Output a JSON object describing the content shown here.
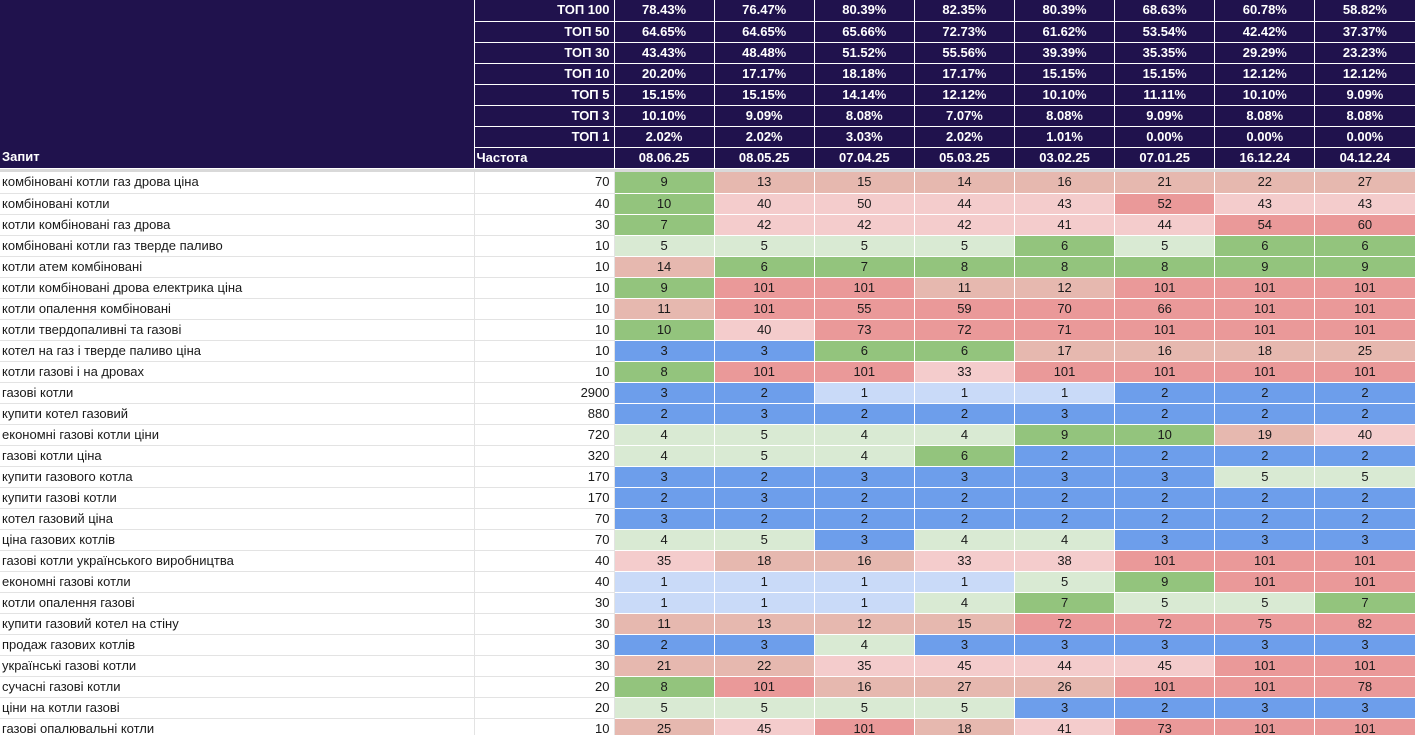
{
  "summary_rows": [
    {
      "label": "ТОП 100",
      "values": [
        "78.43%",
        "76.47%",
        "80.39%",
        "82.35%",
        "80.39%",
        "68.63%",
        "60.78%",
        "58.82%"
      ]
    },
    {
      "label": "ТОП 50",
      "values": [
        "64.65%",
        "64.65%",
        "65.66%",
        "72.73%",
        "61.62%",
        "53.54%",
        "42.42%",
        "37.37%"
      ]
    },
    {
      "label": "ТОП 30",
      "values": [
        "43.43%",
        "48.48%",
        "51.52%",
        "55.56%",
        "39.39%",
        "35.35%",
        "29.29%",
        "23.23%"
      ]
    },
    {
      "label": "ТОП 10",
      "values": [
        "20.20%",
        "17.17%",
        "18.18%",
        "17.17%",
        "15.15%",
        "15.15%",
        "12.12%",
        "12.12%"
      ]
    },
    {
      "label": "ТОП 5",
      "values": [
        "15.15%",
        "15.15%",
        "14.14%",
        "12.12%",
        "10.10%",
        "11.11%",
        "10.10%",
        "9.09%"
      ]
    },
    {
      "label": "ТОП 3",
      "values": [
        "10.10%",
        "9.09%",
        "8.08%",
        "7.07%",
        "8.08%",
        "9.09%",
        "8.08%",
        "8.08%"
      ]
    },
    {
      "label": "ТОП 1",
      "values": [
        "2.02%",
        "2.02%",
        "3.03%",
        "2.02%",
        "1.01%",
        "0.00%",
        "0.00%",
        "0.00%"
      ]
    }
  ],
  "header": {
    "query": "Запит",
    "frequency": "Частота",
    "dates": [
      "08.06.25",
      "08.05.25",
      "07.04.25",
      "05.03.25",
      "03.02.25",
      "07.01.25",
      "16.12.24",
      "04.12.24"
    ]
  },
  "color_legend": {
    "blue": "#6d9eeb",
    "lblue": "#c9daf8",
    "green": "#93c47d",
    "lgreen": "#d9ead3",
    "pink": "#f4cccc",
    "salmon": "#e6b8af",
    "red": "#ea9999",
    "header_bg": "#20124d"
  },
  "rows": [
    {
      "query": "комбіновані котли газ дрова ціна",
      "freq": "70",
      "positions": [
        "9",
        "13",
        "15",
        "14",
        "16",
        "21",
        "22",
        "27"
      ],
      "colors": [
        "green",
        "salmon",
        "salmon",
        "salmon",
        "salmon",
        "salmon",
        "salmon",
        "salmon"
      ]
    },
    {
      "query": "комбіновані котли",
      "freq": "40",
      "positions": [
        "10",
        "40",
        "50",
        "44",
        "43",
        "52",
        "43",
        "43"
      ],
      "colors": [
        "green",
        "pink",
        "pink",
        "pink",
        "pink",
        "red",
        "pink",
        "pink"
      ]
    },
    {
      "query": "котли комбіновані газ дрова",
      "freq": "30",
      "positions": [
        "7",
        "42",
        "42",
        "42",
        "41",
        "44",
        "54",
        "60"
      ],
      "colors": [
        "green",
        "pink",
        "pink",
        "pink",
        "pink",
        "pink",
        "red",
        "red"
      ]
    },
    {
      "query": "комбіновані котли газ тверде паливо",
      "freq": "10",
      "positions": [
        "5",
        "5",
        "5",
        "5",
        "6",
        "5",
        "6",
        "6"
      ],
      "colors": [
        "lgreen",
        "lgreen",
        "lgreen",
        "lgreen",
        "green",
        "lgreen",
        "green",
        "green"
      ]
    },
    {
      "query": "котли атем комбіновані",
      "freq": "10",
      "positions": [
        "14",
        "6",
        "7",
        "8",
        "8",
        "8",
        "9",
        "9"
      ],
      "colors": [
        "salmon",
        "green",
        "green",
        "green",
        "green",
        "green",
        "green",
        "green"
      ]
    },
    {
      "query": "котли комбіновані дрова електрика ціна",
      "freq": "10",
      "positions": [
        "9",
        "101",
        "101",
        "11",
        "12",
        "101",
        "101",
        "101"
      ],
      "colors": [
        "green",
        "red",
        "red",
        "salmon",
        "salmon",
        "red",
        "red",
        "red"
      ]
    },
    {
      "query": "котли опалення комбіновані",
      "freq": "10",
      "positions": [
        "11",
        "101",
        "55",
        "59",
        "70",
        "66",
        "101",
        "101"
      ],
      "colors": [
        "salmon",
        "red",
        "red",
        "red",
        "red",
        "red",
        "red",
        "red"
      ]
    },
    {
      "query": "котли твердопаливні та газові",
      "freq": "10",
      "positions": [
        "10",
        "40",
        "73",
        "72",
        "71",
        "101",
        "101",
        "101"
      ],
      "colors": [
        "green",
        "pink",
        "red",
        "red",
        "red",
        "red",
        "red",
        "red"
      ]
    },
    {
      "query": "котел на газ і тверде паливо ціна",
      "freq": "10",
      "positions": [
        "3",
        "3",
        "6",
        "6",
        "17",
        "16",
        "18",
        "25"
      ],
      "colors": [
        "blue",
        "blue",
        "green",
        "green",
        "salmon",
        "salmon",
        "salmon",
        "salmon"
      ]
    },
    {
      "query": "котли газові і на дровах",
      "freq": "10",
      "positions": [
        "8",
        "101",
        "101",
        "33",
        "101",
        "101",
        "101",
        "101"
      ],
      "colors": [
        "green",
        "red",
        "red",
        "pink",
        "red",
        "red",
        "red",
        "red"
      ]
    },
    {
      "query": "газові котли",
      "freq": "2900",
      "positions": [
        "3",
        "2",
        "1",
        "1",
        "1",
        "2",
        "2",
        "2"
      ],
      "colors": [
        "blue",
        "blue",
        "lblue",
        "lblue",
        "lblue",
        "blue",
        "blue",
        "blue"
      ]
    },
    {
      "query": "купити котел газовий",
      "freq": "880",
      "positions": [
        "2",
        "3",
        "2",
        "2",
        "3",
        "2",
        "2",
        "2"
      ],
      "colors": [
        "blue",
        "blue",
        "blue",
        "blue",
        "blue",
        "blue",
        "blue",
        "blue"
      ]
    },
    {
      "query": "економні газові котли ціни",
      "freq": "720",
      "positions": [
        "4",
        "5",
        "4",
        "4",
        "9",
        "10",
        "19",
        "40"
      ],
      "colors": [
        "lgreen",
        "lgreen",
        "lgreen",
        "lgreen",
        "green",
        "green",
        "salmon",
        "pink"
      ]
    },
    {
      "query": "газові котли ціна",
      "freq": "320",
      "positions": [
        "4",
        "5",
        "4",
        "6",
        "2",
        "2",
        "2",
        "2"
      ],
      "colors": [
        "lgreen",
        "lgreen",
        "lgreen",
        "green",
        "blue",
        "blue",
        "blue",
        "blue"
      ]
    },
    {
      "query": "купити газового котла",
      "freq": "170",
      "positions": [
        "3",
        "2",
        "3",
        "3",
        "3",
        "3",
        "5",
        "5"
      ],
      "colors": [
        "blue",
        "blue",
        "blue",
        "blue",
        "blue",
        "blue",
        "lgreen",
        "lgreen"
      ]
    },
    {
      "query": "купити газові котли",
      "freq": "170",
      "positions": [
        "2",
        "3",
        "2",
        "2",
        "2",
        "2",
        "2",
        "2"
      ],
      "colors": [
        "blue",
        "blue",
        "blue",
        "blue",
        "blue",
        "blue",
        "blue",
        "blue"
      ]
    },
    {
      "query": "котел газовий ціна",
      "freq": "70",
      "positions": [
        "3",
        "2",
        "2",
        "2",
        "2",
        "2",
        "2",
        "2"
      ],
      "colors": [
        "blue",
        "blue",
        "blue",
        "blue",
        "blue",
        "blue",
        "blue",
        "blue"
      ]
    },
    {
      "query": "ціна газових котлів",
      "freq": "70",
      "positions": [
        "4",
        "5",
        "3",
        "4",
        "4",
        "3",
        "3",
        "3"
      ],
      "colors": [
        "lgreen",
        "lgreen",
        "blue",
        "lgreen",
        "lgreen",
        "blue",
        "blue",
        "blue"
      ]
    },
    {
      "query": "газові котли українського виробництва",
      "freq": "40",
      "positions": [
        "35",
        "18",
        "16",
        "33",
        "38",
        "101",
        "101",
        "101"
      ],
      "colors": [
        "pink",
        "salmon",
        "salmon",
        "pink",
        "pink",
        "red",
        "red",
        "red"
      ]
    },
    {
      "query": "економні газові котли",
      "freq": "40",
      "positions": [
        "1",
        "1",
        "1",
        "1",
        "5",
        "9",
        "101",
        "101"
      ],
      "colors": [
        "lblue",
        "lblue",
        "lblue",
        "lblue",
        "lgreen",
        "green",
        "red",
        "red"
      ]
    },
    {
      "query": "котли опалення газові",
      "freq": "30",
      "positions": [
        "1",
        "1",
        "1",
        "4",
        "7",
        "5",
        "5",
        "7"
      ],
      "colors": [
        "lblue",
        "lblue",
        "lblue",
        "lgreen",
        "green",
        "lgreen",
        "lgreen",
        "green"
      ]
    },
    {
      "query": "купити газовий котел на стіну",
      "freq": "30",
      "positions": [
        "11",
        "13",
        "12",
        "15",
        "72",
        "72",
        "75",
        "82"
      ],
      "colors": [
        "salmon",
        "salmon",
        "salmon",
        "salmon",
        "red",
        "red",
        "red",
        "red"
      ]
    },
    {
      "query": "продаж газових котлів",
      "freq": "30",
      "positions": [
        "2",
        "3",
        "4",
        "3",
        "3",
        "3",
        "3",
        "3"
      ],
      "colors": [
        "blue",
        "blue",
        "lgreen",
        "blue",
        "blue",
        "blue",
        "blue",
        "blue"
      ]
    },
    {
      "query": "українські газові котли",
      "freq": "30",
      "positions": [
        "21",
        "22",
        "35",
        "45",
        "44",
        "45",
        "101",
        "101"
      ],
      "colors": [
        "salmon",
        "salmon",
        "pink",
        "pink",
        "pink",
        "pink",
        "red",
        "red"
      ]
    },
    {
      "query": "сучасні газові котли",
      "freq": "20",
      "positions": [
        "8",
        "101",
        "16",
        "27",
        "26",
        "101",
        "101",
        "78"
      ],
      "colors": [
        "green",
        "red",
        "salmon",
        "salmon",
        "salmon",
        "red",
        "red",
        "red"
      ]
    },
    {
      "query": "ціни на котли газові",
      "freq": "20",
      "positions": [
        "5",
        "5",
        "5",
        "5",
        "3",
        "2",
        "3",
        "3"
      ],
      "colors": [
        "lgreen",
        "lgreen",
        "lgreen",
        "lgreen",
        "blue",
        "blue",
        "blue",
        "blue"
      ]
    },
    {
      "query": "газові опалювальні котли",
      "freq": "10",
      "positions": [
        "25",
        "45",
        "101",
        "18",
        "41",
        "73",
        "101",
        "101"
      ],
      "colors": [
        "salmon",
        "pink",
        "red",
        "salmon",
        "pink",
        "red",
        "red",
        "red"
      ]
    }
  ]
}
